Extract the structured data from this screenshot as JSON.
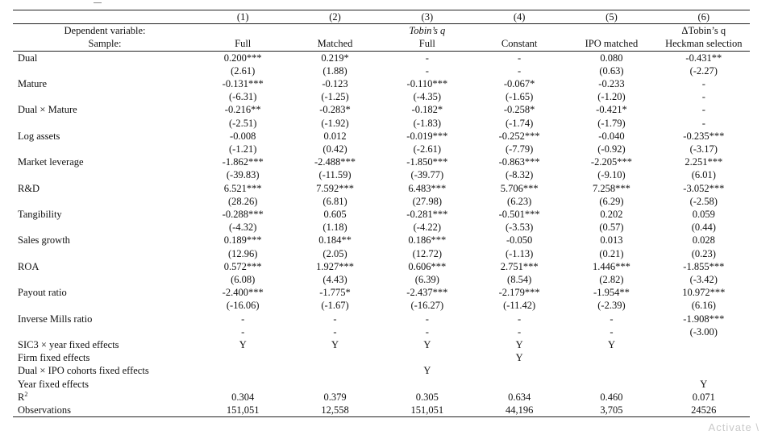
{
  "header": {
    "columns": [
      "(1)",
      "(2)",
      "(3)",
      "(4)",
      "(5)",
      "(6)"
    ],
    "dep_label": "Dependent variable:",
    "sample_label": "Sample:",
    "dep_values": [
      "",
      "",
      "Tobin’s q",
      "",
      "",
      "ΔTobin’s q"
    ],
    "sample_values": [
      "Full",
      "Matched",
      "Full",
      "Constant",
      "IPO matched",
      "Heckman selection"
    ]
  },
  "rows": [
    {
      "label": "Dual",
      "coef": [
        "0.200***",
        "0.219*",
        "-",
        "-",
        "0.080",
        "-0.431**"
      ],
      "tstat": [
        "(2.61)",
        "(1.88)",
        "-",
        "-",
        "(0.63)",
        "(-2.27)"
      ]
    },
    {
      "label": "Mature",
      "coef": [
        "-0.131***",
        "-0.123",
        "-0.110***",
        "-0.067*",
        "-0.233",
        "-"
      ],
      "tstat": [
        "(-6.31)",
        "(-1.25)",
        "(-4.35)",
        "(-1.65)",
        "(-1.20)",
        "-"
      ]
    },
    {
      "label": "Dual × Mature",
      "coef": [
        "-0.216**",
        "-0.283*",
        "-0.182*",
        "-0.258*",
        "-0.421*",
        "-"
      ],
      "tstat": [
        "(-2.51)",
        "(-1.92)",
        "(-1.83)",
        "(-1.74)",
        "(-1.79)",
        "-"
      ]
    },
    {
      "label": "Log assets",
      "coef": [
        "-0.008",
        "0.012",
        "-0.019***",
        "-0.252***",
        "-0.040",
        "-0.235***"
      ],
      "tstat": [
        "(-1.21)",
        "(0.42)",
        "(-2.61)",
        "(-7.79)",
        "(-0.92)",
        "(-3.17)"
      ]
    },
    {
      "label": "Market leverage",
      "coef": [
        "-1.862***",
        "-2.488***",
        "-1.850***",
        "-0.863***",
        "-2.205***",
        "2.251***"
      ],
      "tstat": [
        "(-39.83)",
        "(-11.59)",
        "(-39.77)",
        "(-8.32)",
        "(-9.10)",
        "(6.01)"
      ]
    },
    {
      "label": "R&D",
      "coef": [
        "6.521***",
        "7.592***",
        "6.483***",
        "5.706***",
        "7.258***",
        "-3.052***"
      ],
      "tstat": [
        "(28.26)",
        "(6.81)",
        "(27.98)",
        "(6.23)",
        "(6.29)",
        "(-2.58)"
      ]
    },
    {
      "label": "Tangibility",
      "coef": [
        "-0.288***",
        "0.605",
        "-0.281***",
        "-0.501***",
        "0.202",
        "0.059"
      ],
      "tstat": [
        "(-4.32)",
        "(1.18)",
        "(-4.22)",
        "(-3.53)",
        "(0.57)",
        "(0.44)"
      ]
    },
    {
      "label": "Sales growth",
      "coef": [
        "0.189***",
        "0.184**",
        "0.186***",
        "-0.050",
        "0.013",
        "0.028"
      ],
      "tstat": [
        "(12.96)",
        "(2.05)",
        "(12.72)",
        "(-1.13)",
        "(0.21)",
        "(0.23)"
      ]
    },
    {
      "label": "ROA",
      "coef": [
        "0.572***",
        "1.927***",
        "0.606***",
        "2.751***",
        "1.446***",
        "-1.855***"
      ],
      "tstat": [
        "(6.08)",
        "(4.43)",
        "(6.39)",
        "(8.54)",
        "(2.82)",
        "(-3.42)"
      ]
    },
    {
      "label": "Payout ratio",
      "coef": [
        "-2.400***",
        "-1.775*",
        "-2.437***",
        "-2.179***",
        "-1.954**",
        "10.972***"
      ],
      "tstat": [
        "(-16.06)",
        "(-1.67)",
        "(-16.27)",
        "(-11.42)",
        "(-2.39)",
        "(6.16)"
      ]
    },
    {
      "label": "Inverse Mills ratio",
      "coef": [
        "-",
        "-",
        "-",
        "-",
        "-",
        "-1.908***"
      ],
      "tstat": [
        "-",
        "-",
        "-",
        "-",
        "-",
        "(-3.00)"
      ]
    }
  ],
  "fixed_effects": [
    {
      "label": "SIC3 × year fixed effects",
      "values": [
        "Y",
        "Y",
        "Y",
        "Y",
        "Y",
        ""
      ]
    },
    {
      "label": "Firm fixed effects",
      "values": [
        "",
        "",
        "",
        "Y",
        "",
        ""
      ]
    },
    {
      "label": "Dual × IPO cohorts fixed effects",
      "values": [
        "",
        "",
        "Y",
        "",
        "",
        ""
      ]
    },
    {
      "label": "Year fixed effects",
      "values": [
        "",
        "",
        "",
        "",
        "",
        "Y"
      ]
    }
  ],
  "stats": {
    "r2_label": "R",
    "r2_sup": "2",
    "r2": [
      "0.304",
      "0.379",
      "0.305",
      "0.634",
      "0.460",
      "0.071"
    ],
    "obs_label": "Observations",
    "obs": [
      "151,051",
      "12,558",
      "151,051",
      "44,196",
      "3,705",
      "24526"
    ]
  },
  "watermark": "Activate \\"
}
